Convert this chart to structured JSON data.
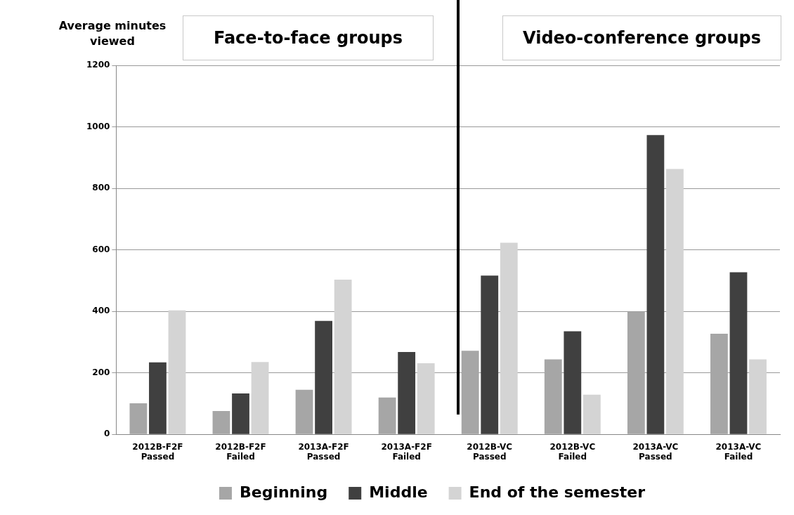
{
  "chart_data": {
    "type": "bar",
    "ylabel": "Average minutes viewed",
    "annotations": [
      "Face-to-face groups",
      "Video-conference groups"
    ],
    "categories": [
      "2012B-F2F Passed",
      "2012B-F2F Failed",
      "2013A-F2F Passed",
      "2013A-F2F Failed",
      "2012B-VC Passed",
      "2012B-VC Failed",
      "2013A-VC Passed",
      "2013A-VC Failed"
    ],
    "series": [
      {
        "name": "Beginning",
        "color": "#a6a6a6",
        "values": [
          101,
          76,
          145,
          120,
          272,
          244,
          399,
          327
        ]
      },
      {
        "name": "Middle",
        "color": "#404040",
        "values": [
          234,
          133,
          369,
          268,
          516,
          335,
          973,
          527
        ]
      },
      {
        "name": "End of the semester",
        "color": "#d4d4d4",
        "values": [
          403,
          235,
          503,
          231,
          623,
          129,
          863,
          244
        ]
      }
    ],
    "ylim": [
      0,
      1200
    ],
    "yticks": [
      0,
      200,
      400,
      600,
      800,
      1000,
      1200
    ],
    "grid": "y",
    "legend": "bottom"
  }
}
